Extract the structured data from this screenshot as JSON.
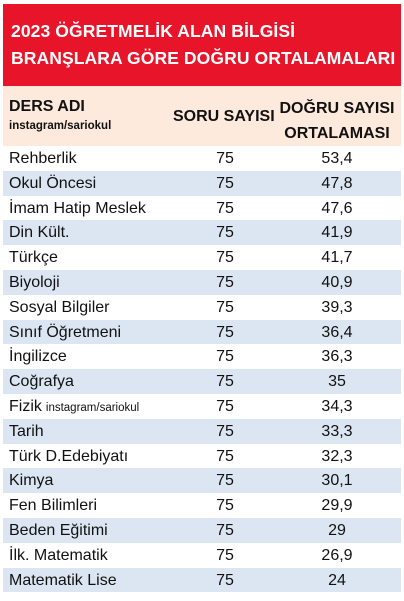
{
  "title": {
    "line1": "2023 ÖĞRETMELİK ALAN BİLGİSİ",
    "line2": "BRANŞLARA GÖRE DOĞRU ORTALAMALARI"
  },
  "header": {
    "name": "DERS ADI",
    "instagram": "instagram/sariokul",
    "soru": "SORU SAYISI",
    "dogru_line1": "DOĞRU SAYISI",
    "dogru_line2": "ORTALAMASI"
  },
  "rows": [
    {
      "name": "Rehberlik",
      "note": "",
      "soru": "75",
      "avg": "53,4"
    },
    {
      "name": "Okul Öncesi",
      "note": "",
      "soru": "75",
      "avg": "47,8"
    },
    {
      "name": "İmam Hatip Meslek",
      "note": "",
      "soru": "75",
      "avg": "47,6"
    },
    {
      "name": "Din Kült.",
      "note": "",
      "soru": "75",
      "avg": "41,9"
    },
    {
      "name": "Türkçe",
      "note": "",
      "soru": "75",
      "avg": "41,7"
    },
    {
      "name": "Biyoloji",
      "note": "",
      "soru": "75",
      "avg": "40,9"
    },
    {
      "name": "Sosyal Bilgiler",
      "note": "",
      "soru": "75",
      "avg": "39,3"
    },
    {
      "name": "Sınıf Öğretmeni",
      "note": "",
      "soru": "75",
      "avg": "36,4"
    },
    {
      "name": "İngilizce",
      "note": "",
      "soru": "75",
      "avg": "36,3"
    },
    {
      "name": "Coğrafya",
      "note": "",
      "soru": "75",
      "avg": "35"
    },
    {
      "name": "Fizik",
      "note": "instagram/sariokul",
      "soru": "75",
      "avg": "34,3"
    },
    {
      "name": "Tarih",
      "note": "",
      "soru": "75",
      "avg": "33,3"
    },
    {
      "name": "Türk D.Edebiyatı",
      "note": "",
      "soru": "75",
      "avg": "32,3"
    },
    {
      "name": "Kimya",
      "note": "",
      "soru": "75",
      "avg": "30,1"
    },
    {
      "name": "Fen Bilimleri",
      "note": "",
      "soru": "75",
      "avg": "29,9"
    },
    {
      "name": "Beden Eğitimi",
      "note": "",
      "soru": "75",
      "avg": "29"
    },
    {
      "name": "İlk. Matematik",
      "note": "",
      "soru": "75",
      "avg": "26,9"
    },
    {
      "name": "Matematik Lise",
      "note": "",
      "soru": "75",
      "avg": "24"
    }
  ],
  "colors": {
    "title_bg": "#e8152a",
    "header_bg": "#fdeadd",
    "row_alt_bg": "#dce6f2"
  }
}
